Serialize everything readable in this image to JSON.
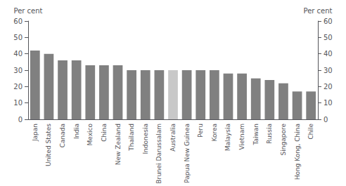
{
  "chart_data": {
    "type": "bar",
    "categories": [
      "Japan",
      "United States",
      "Canada",
      "India",
      "Mexico",
      "China",
      "New Zealand",
      "Thailand",
      "Indonesia",
      "Brunei Darussalam",
      "Australia",
      "Papua New Guinea",
      "Peru",
      "Korea",
      "Malaysia",
      "Vietnam",
      "Taiwan",
      "Russia",
      "Singapore",
      "Hong Kong, China",
      "Chile"
    ],
    "values": [
      42,
      40,
      36,
      36,
      33,
      33,
      33,
      30,
      30,
      30,
      30,
      30,
      30,
      30,
      28,
      28,
      25,
      24,
      22,
      17,
      17
    ],
    "colors": [
      "#808080",
      "#808080",
      "#808080",
      "#808080",
      "#808080",
      "#808080",
      "#808080",
      "#808080",
      "#808080",
      "#808080",
      "#c8c8c8",
      "#808080",
      "#808080",
      "#808080",
      "#808080",
      "#808080",
      "#808080",
      "#808080",
      "#808080",
      "#808080",
      "#808080"
    ],
    "ylabel": "Per cent",
    "y2label": "Per cent",
    "ylim": [
      0,
      60
    ],
    "yticks": [
      0,
      10,
      20,
      30,
      40,
      50,
      60
    ],
    "y2lim": [
      0,
      60
    ],
    "y2ticks": [
      0,
      10,
      20,
      30,
      40,
      50,
      60
    ],
    "grid": false
  }
}
